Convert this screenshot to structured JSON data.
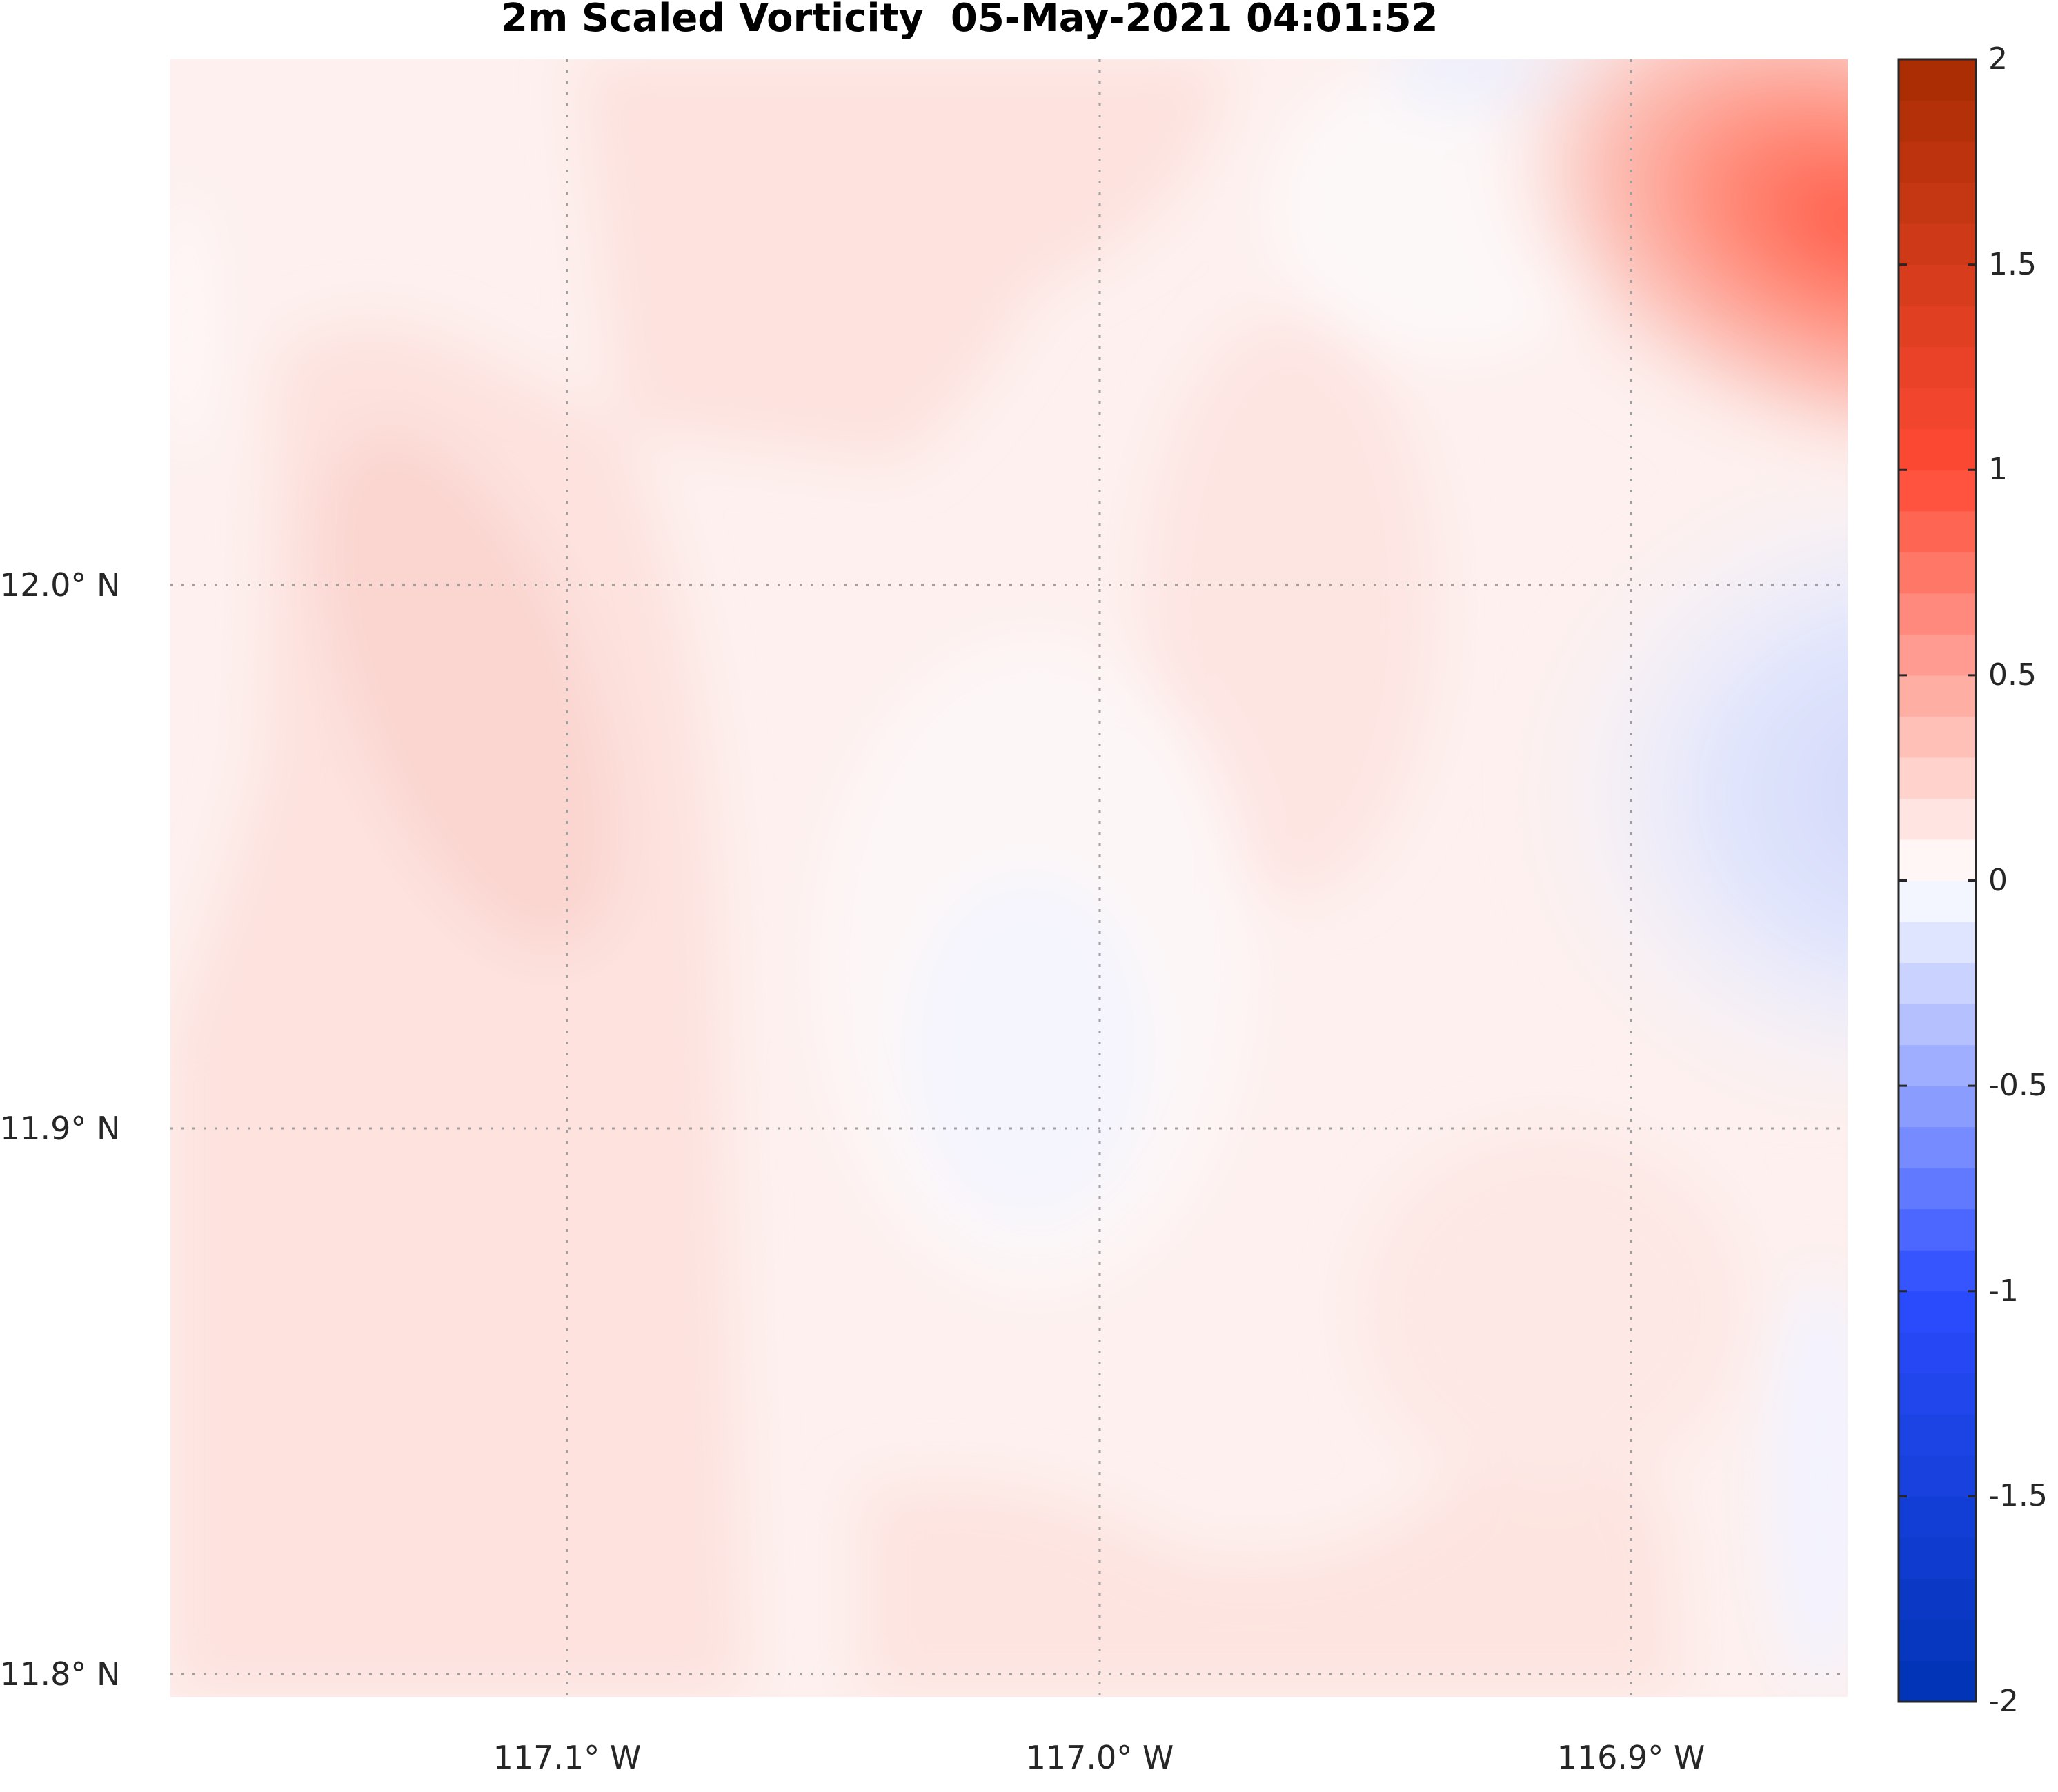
{
  "chart_data": {
    "type": "heatmap",
    "subtype": "filled-contour-map",
    "title": "2m Scaled Vorticity  05-May-2021 04:01:52",
    "xlabel": "",
    "ylabel": "",
    "x_ticks": [
      {
        "value": -117.1,
        "label": "117.1° W"
      },
      {
        "value": -117.0,
        "label": "117.0° W"
      },
      {
        "value": -116.9,
        "label": "116.9° W"
      }
    ],
    "y_ticks": [
      {
        "value": 12.0,
        "label": "12.0° N"
      },
      {
        "value": 11.9,
        "label": "11.9° N"
      },
      {
        "value": 11.8,
        "label": "11.8° N"
      }
    ],
    "xlim": [
      -117.174,
      -116.86
    ],
    "ylim": [
      11.797,
      12.097
    ],
    "grid": true,
    "colorbar": {
      "range": [
        -2,
        2
      ],
      "levels_step": 0.1,
      "ticks": [
        {
          "value": 2,
          "label": "2"
        },
        {
          "value": 1.5,
          "label": "1.5"
        },
        {
          "value": 1,
          "label": "1"
        },
        {
          "value": 0.5,
          "label": "0.5"
        },
        {
          "value": 0,
          "label": "0"
        },
        {
          "value": -0.5,
          "label": "-0.5"
        },
        {
          "value": -1,
          "label": "-1"
        },
        {
          "value": -1.5,
          "label": "-1.5"
        },
        {
          "value": -2,
          "label": "-2"
        }
      ],
      "placement": "right",
      "colormap": "blue-white-red diverging"
    },
    "features": [
      {
        "name": "positive maximum",
        "location": "top-right",
        "approx_value": 0.9
      },
      {
        "name": "negative minimum",
        "location": "right-center",
        "approx_value": -0.2
      },
      {
        "name": "weak negative",
        "location": "center",
        "approx_value": -0.05
      },
      {
        "name": "background",
        "approx_value": 0.1
      }
    ]
  },
  "colors": {
    "neg_max": "#0033b3",
    "neg_mid": "#2b4cff",
    "zero": "#ffffff",
    "pos_mid": "#ff4a35",
    "pos_max": "#a62b00"
  }
}
